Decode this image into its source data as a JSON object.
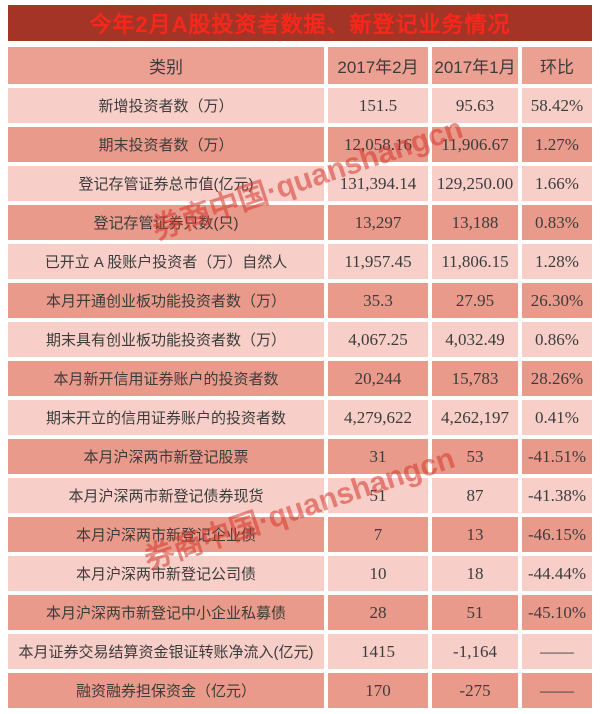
{
  "title_bar": {
    "text": "今年2月A股投资者数据、新登记业务情况",
    "background": "#A33426",
    "text_color": "#F8271B"
  },
  "watermarks": [
    {
      "text": "券商中国·quanshangcn"
    },
    {
      "text": "券商中国·quanshangcn"
    }
  ],
  "colors": {
    "title_bar_bg": "#A33426",
    "title_text": "#F8271B",
    "header_row_bg": "#ECA091",
    "row_light_bg": "#F7CFC8",
    "row_dark_bg": "#EA9A8A",
    "cell_text": "#3C3C3C",
    "watermark_red": "#D3362C",
    "page_bg": "#FFFFFF"
  },
  "chart_data": {
    "type": "table",
    "title": "今年2月A股投资者数据、新登记业务情况",
    "columns": [
      "类别",
      "2017年2月",
      "2017年1月",
      "环比"
    ],
    "rows": [
      [
        "新增投资者数（万）",
        "151.5",
        "95.63",
        "58.42%"
      ],
      [
        "期末投资者数（万）",
        "12,058.16",
        "11,906.67",
        "1.27%"
      ],
      [
        "登记存管证券总市值(亿元)",
        "131,394.14",
        "129,250.00",
        "1.66%"
      ],
      [
        "登记存管证券只数(只)",
        "13,297",
        "13,188",
        "0.83%"
      ],
      [
        "已开立 A 股账户投资者（万）自然人",
        "11,957.45",
        "11,806.15",
        "1.28%"
      ],
      [
        "本月开通创业板功能投资者数（万）",
        "35.3",
        "27.95",
        "26.30%"
      ],
      [
        "期末具有创业板功能投资者数（万）",
        "4,067.25",
        "4,032.49",
        "0.86%"
      ],
      [
        "本月新开信用证券账户的投资者数",
        "20,244",
        "15,783",
        "28.26%"
      ],
      [
        "期末开立的信用证券账户的投资者数",
        "4,279,622",
        "4,262,197",
        "0.41%"
      ],
      [
        "本月沪深两市新登记股票",
        "31",
        "53",
        "-41.51%"
      ],
      [
        "本月沪深两市新登记债券现货",
        "51",
        "87",
        "-41.38%"
      ],
      [
        "本月沪深两市新登记企业债",
        "7",
        "13",
        "-46.15%"
      ],
      [
        "本月沪深两市新登记公司债",
        "10",
        "18",
        "-44.44%"
      ],
      [
        "本月沪深两市新登记中小企业私募债",
        "28",
        "51",
        "-45.10%"
      ],
      [
        "本月证券交易结算资金银证转账净流入(亿元)",
        "1415",
        "-1,164",
        "——"
      ],
      [
        "融资融券担保资金（亿元）",
        "170",
        "-275",
        "——"
      ]
    ]
  }
}
